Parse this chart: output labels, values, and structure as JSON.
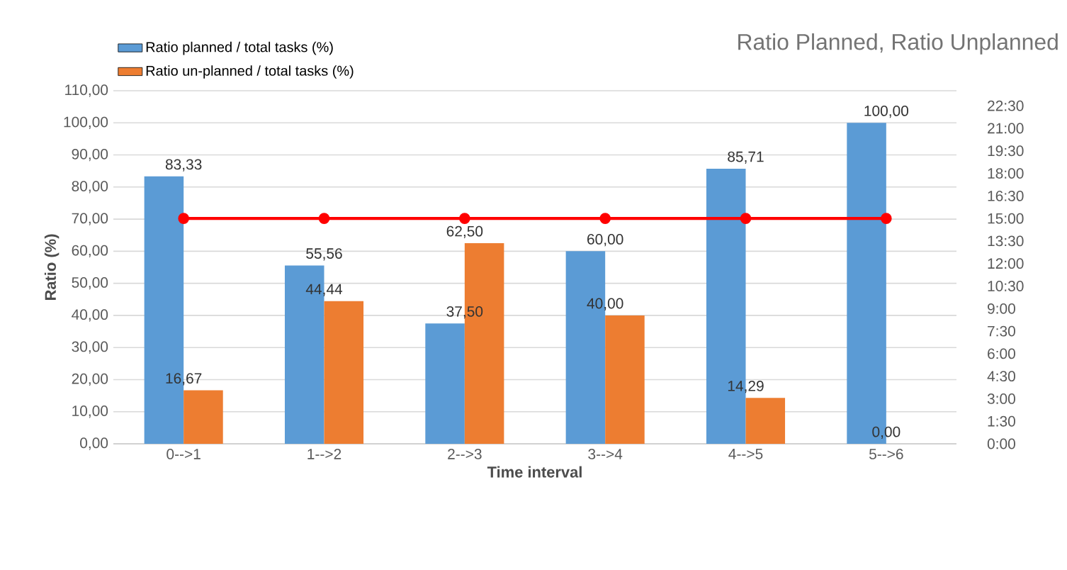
{
  "chart_data": {
    "type": "bar",
    "title": "Ratio Planned, Ratio Unplanned",
    "xlabel": "Time interval",
    "ylabel": "Ratio (%)",
    "categories": [
      "0-->1",
      "1-->2",
      "2-->3",
      "3-->4",
      "4-->5",
      "5-->6"
    ],
    "series": [
      {
        "name": "Ratio planned / total tasks (%)",
        "color": "#5b9bd5",
        "values": [
          83.33,
          55.56,
          37.5,
          60.0,
          85.71,
          100.0
        ],
        "value_labels": [
          "83,33",
          "55,56",
          "37,50",
          "60,00",
          "85,71",
          "100,00"
        ]
      },
      {
        "name": "Ratio un-planned / total tasks (%)",
        "color": "#ed7d31",
        "values": [
          16.67,
          44.44,
          62.5,
          40.0,
          14.29,
          0.0
        ],
        "value_labels": [
          "16,67",
          "44,44",
          "62,50",
          "40,00",
          "14,29",
          "0,00"
        ]
      },
      {
        "type": "line",
        "axis": "y2",
        "color": "#ff0000",
        "marker": "circle",
        "values": [
          15,
          15,
          15,
          15,
          15,
          15
        ]
      }
    ],
    "ylim": [
      0,
      110
    ],
    "yticks": [
      {
        "value": 0,
        "label": "0,00"
      },
      {
        "value": 10,
        "label": "10,00"
      },
      {
        "value": 20,
        "label": "20,00"
      },
      {
        "value": 30,
        "label": "30,00"
      },
      {
        "value": 40,
        "label": "40,00"
      },
      {
        "value": 50,
        "label": "50,00"
      },
      {
        "value": 60,
        "label": "60,00"
      },
      {
        "value": 70,
        "label": "70,00"
      },
      {
        "value": 80,
        "label": "80,00"
      },
      {
        "value": 90,
        "label": "90,00"
      },
      {
        "value": 100,
        "label": "100,00"
      },
      {
        "value": 110,
        "label": "110,00"
      }
    ],
    "y2lim": [
      0,
      23.5
    ],
    "y2ticks": [
      {
        "value": 0,
        "label": "0:00"
      },
      {
        "value": 1.5,
        "label": "1:30"
      },
      {
        "value": 3,
        "label": "3:00"
      },
      {
        "value": 4.5,
        "label": "4:30"
      },
      {
        "value": 6,
        "label": "6:00"
      },
      {
        "value": 7.5,
        "label": "7:30"
      },
      {
        "value": 9,
        "label": "9:00"
      },
      {
        "value": 10.5,
        "label": "10:30"
      },
      {
        "value": 12,
        "label": "12:00"
      },
      {
        "value": 13.5,
        "label": "13:30"
      },
      {
        "value": 15,
        "label": "15:00"
      },
      {
        "value": 16.5,
        "label": "16:30"
      },
      {
        "value": 18,
        "label": "18:00"
      },
      {
        "value": 19.5,
        "label": "19:30"
      },
      {
        "value": 21,
        "label": "21:00"
      },
      {
        "value": 22.5,
        "label": "22:30"
      }
    ],
    "grid": "y",
    "legend": "top left"
  }
}
